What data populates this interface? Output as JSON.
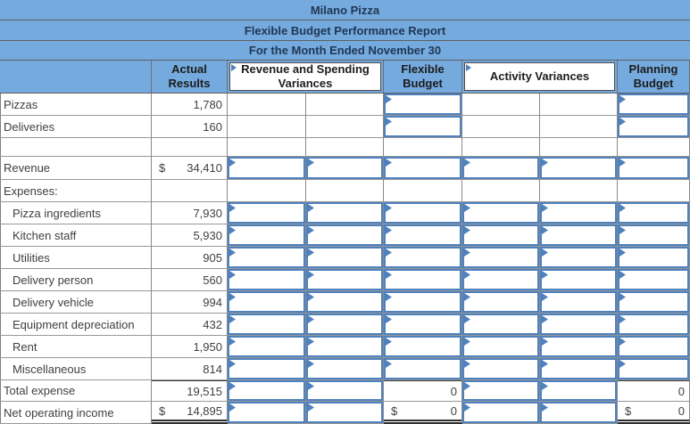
{
  "titles": {
    "company": "Milano Pizza",
    "report": "Flexible Budget Performance Report",
    "period": "For the Month Ended November 30"
  },
  "columns": {
    "actual": "Actual Results",
    "rsv": "Revenue and Spending Variances",
    "flexible": "Flexible Budget",
    "activity": "Activity Variances",
    "planning": "Planning Budget"
  },
  "rows": [
    {
      "label": "Pizzas",
      "actual": "1,780"
    },
    {
      "label": "Deliveries",
      "actual": "160"
    },
    {
      "label": "",
      "actual": ""
    },
    {
      "label": "Revenue",
      "actual": "34,410",
      "actual_currency": "$"
    },
    {
      "label": "Expenses:",
      "actual": ""
    },
    {
      "label": "Pizza ingredients",
      "actual": "7,930"
    },
    {
      "label": "Kitchen staff",
      "actual": "5,930"
    },
    {
      "label": "Utilities",
      "actual": "905"
    },
    {
      "label": "Delivery person",
      "actual": "560"
    },
    {
      "label": "Delivery vehicle",
      "actual": "994"
    },
    {
      "label": "Equipment depreciation",
      "actual": "432"
    },
    {
      "label": "Rent",
      "actual": "1,950"
    },
    {
      "label": "Miscellaneous",
      "actual": "814"
    },
    {
      "label": "Total expense",
      "actual": "19,515",
      "flexible": "0",
      "planning": "0"
    },
    {
      "label": "Net operating income",
      "actual": "14,895",
      "actual_currency": "$",
      "flexible": "0",
      "flexible_currency": "$",
      "planning": "0",
      "planning_currency": "$"
    }
  ],
  "icons": {
    "answer_flag": "right-pointing-triangle-flag"
  },
  "colors": {
    "header_blue": "#75aade",
    "input_border_blue": "#4f81bd",
    "grid_gray": "#8a8a8a",
    "title_text": "#203754"
  }
}
